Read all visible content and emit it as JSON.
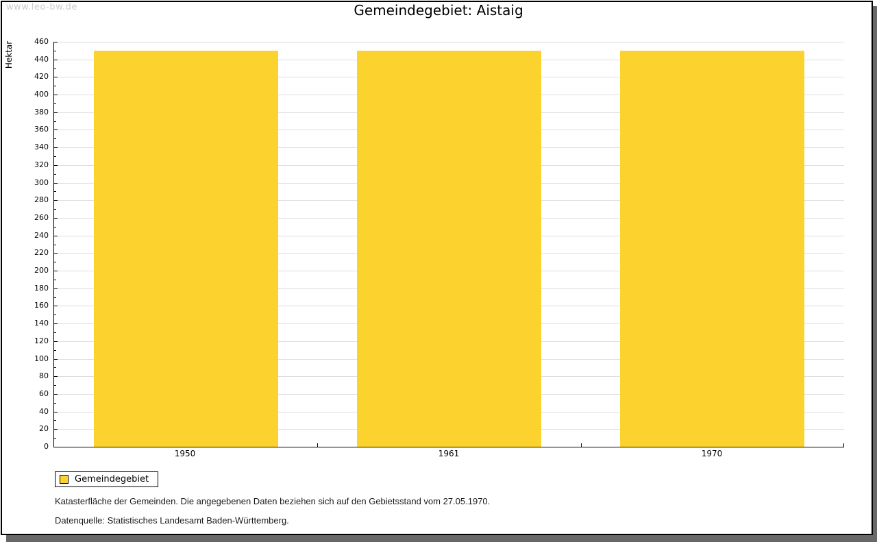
{
  "watermark": "www.leo-bw.de",
  "title": "Gemeindegebiet: Aistaig",
  "chart_data": {
    "type": "bar",
    "title": "Gemeindegebiet: Aistaig",
    "categories": [
      "1950",
      "1961",
      "1970"
    ],
    "series": [
      {
        "name": "Gemeindegebiet",
        "values": [
          450,
          450,
          450
        ]
      }
    ],
    "xlabel": "",
    "ylabel": "Hektar",
    "unit": "Hektar",
    "ylim": [
      0,
      460
    ],
    "ytick_step": 20,
    "yminor_step": 10,
    "grid": true,
    "legend_position": "below-left"
  },
  "legend": {
    "items": [
      {
        "label": "Gemeindegebiet",
        "color": "#FCD32E"
      }
    ]
  },
  "footnotes": [
    "Katasterfläche der Gemeinden. Die angegebenen Daten beziehen sich auf den Gebietsstand vom 27.05.1970.",
    "Datenquelle: Statistisches Landesamt Baden-Württemberg."
  ],
  "colors": {
    "bar": "#FCD32E",
    "grid": "#DEDEDE",
    "axis": "#000000",
    "watermark": "#CBCBCB",
    "frame_border": "#000000",
    "shadow": "#686868",
    "background": "#FFFFFF"
  }
}
